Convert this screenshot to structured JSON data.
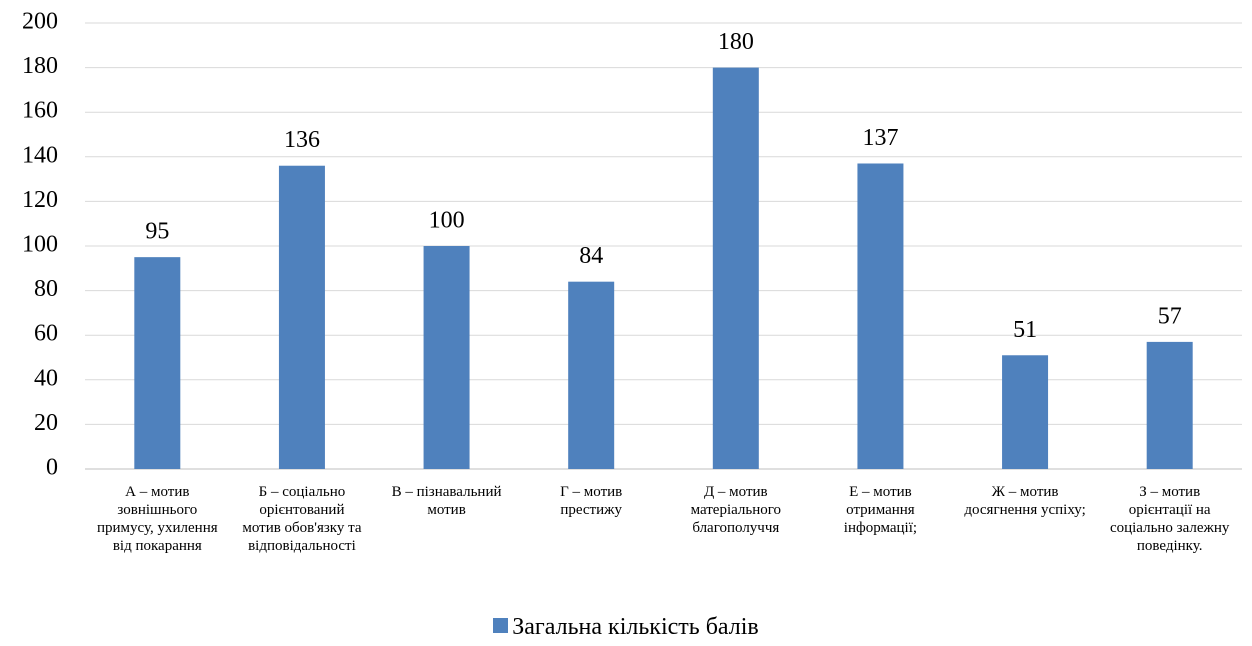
{
  "chart_data": {
    "type": "bar",
    "categories": [
      "А – мотив зовнішнього примусу, ухилення від покарання",
      "Б – соціально орієнтований мотив обов'язку та відповідальності",
      "В – пізнавальний мотив",
      "Г – мотив престижу",
      "Д – мотив матеріального благополуччя",
      "Е – мотив отримання інформації;",
      "Ж – мотив досягнення успіху;",
      "З – мотив орієнтації на соціально залежну поведінку."
    ],
    "series": [
      {
        "name": "Загальна кількість балів",
        "color": "#4f81bd",
        "values": [
          95,
          136,
          100,
          84,
          180,
          137,
          51,
          57
        ]
      }
    ],
    "ylim": [
      0,
      200
    ],
    "yticks": [
      0,
      20,
      40,
      60,
      80,
      100,
      120,
      140,
      160,
      180,
      200
    ],
    "grid": true,
    "legend": "bottom"
  }
}
